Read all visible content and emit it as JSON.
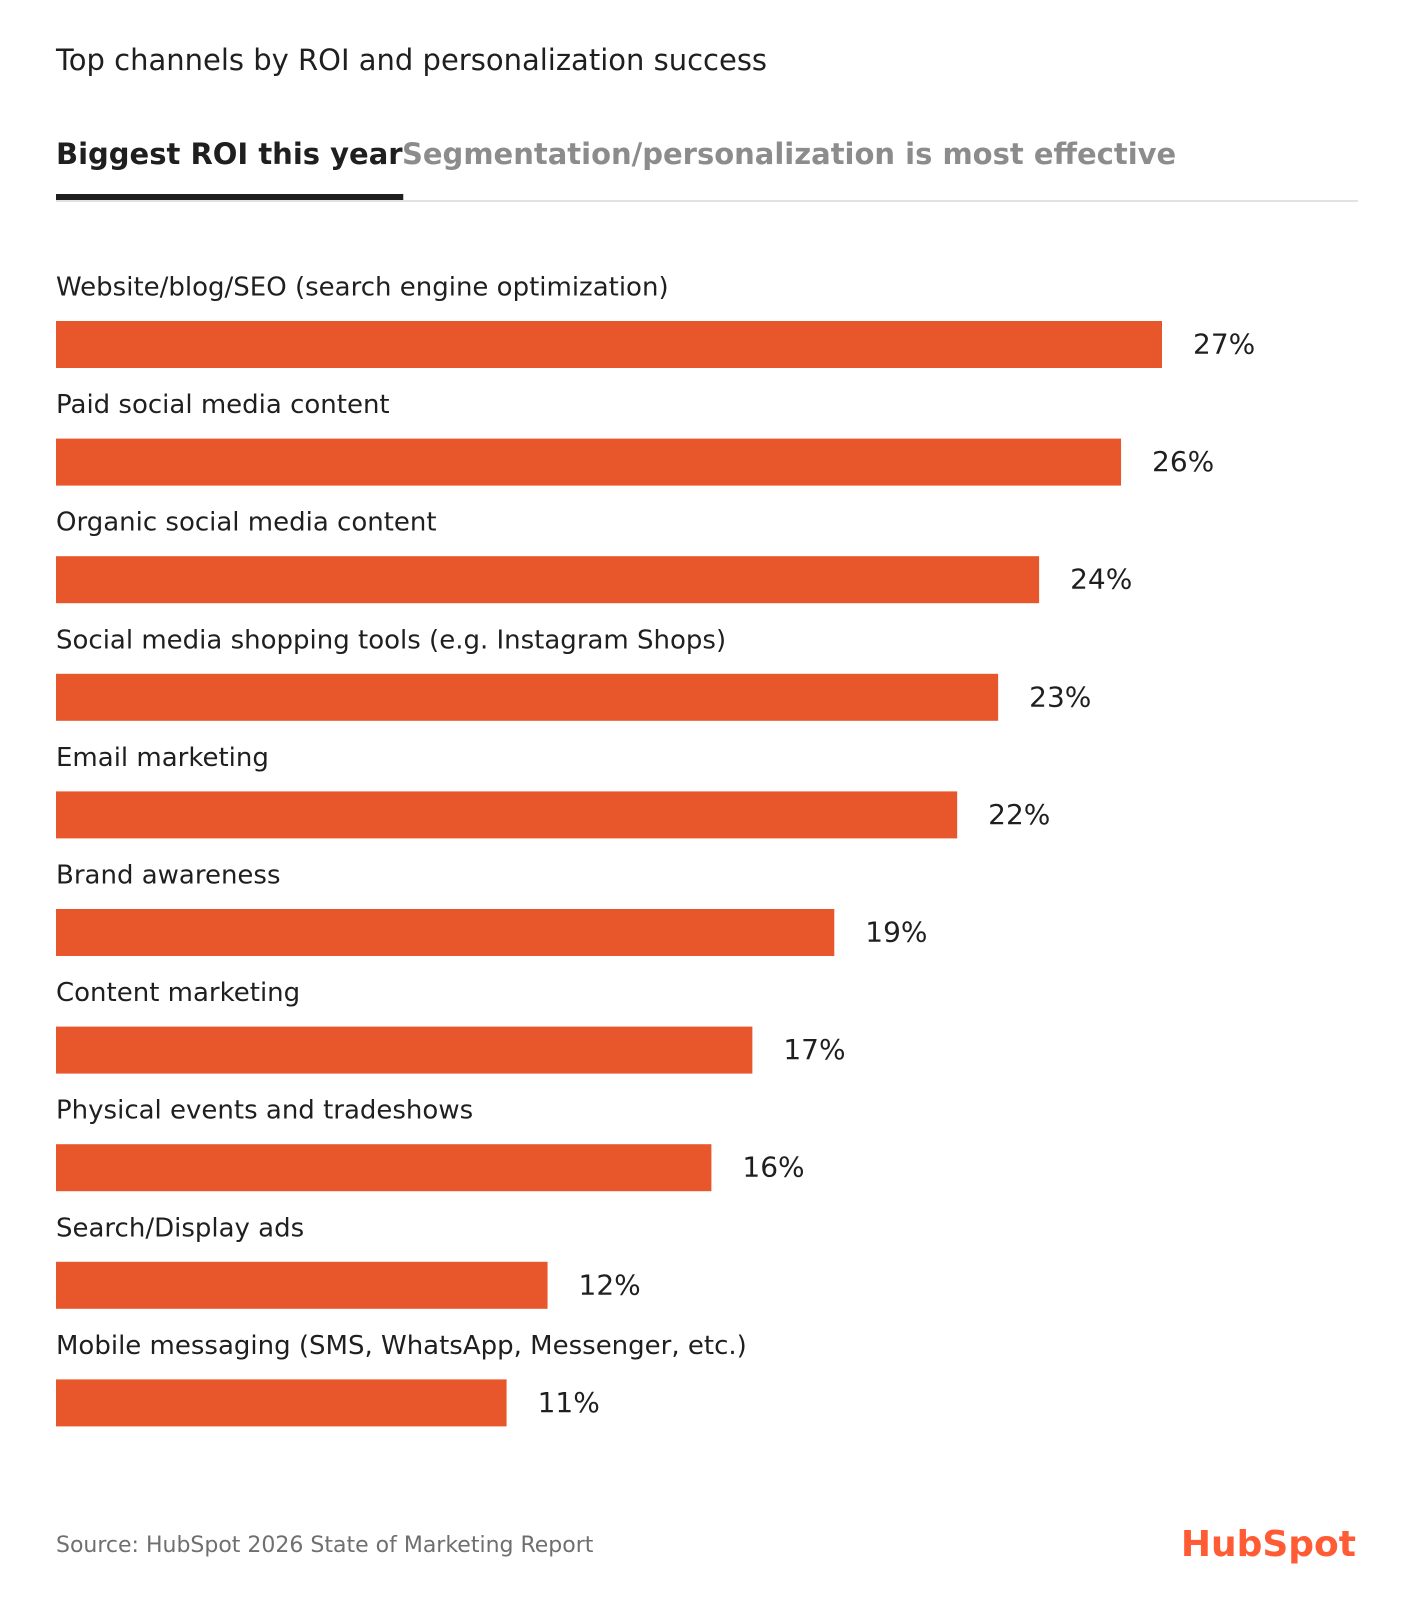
{
  "chart_data": {
    "type": "bar",
    "orientation": "horizontal",
    "title": "Top channels by ROI and personalization success",
    "tabs": [
      "Biggest ROI this year",
      "Segmentation/personalization is most effective"
    ],
    "active_tab": 0,
    "categories": [
      "Website/blog/SEO (search engine optimization)",
      "Paid social media content",
      "Organic social media content",
      "Social media shopping tools (e.g. Instagram Shops)",
      "Email marketing",
      "Brand awareness",
      "Content marketing",
      "Physical events and tradeshows",
      "Search/Display ads",
      "Mobile messaging (SMS, WhatsApp, Messenger, etc.)"
    ],
    "values": [
      27,
      26,
      24,
      23,
      22,
      19,
      17,
      16,
      12,
      11
    ],
    "value_labels": [
      "27%",
      "26%",
      "24%",
      "23%",
      "22%",
      "19%",
      "17%",
      "16%",
      "12%",
      "11%"
    ],
    "color": "#e8572c",
    "source": "Source: HubSpot 2026 State of Marketing Report",
    "logo": "HubSpot"
  }
}
